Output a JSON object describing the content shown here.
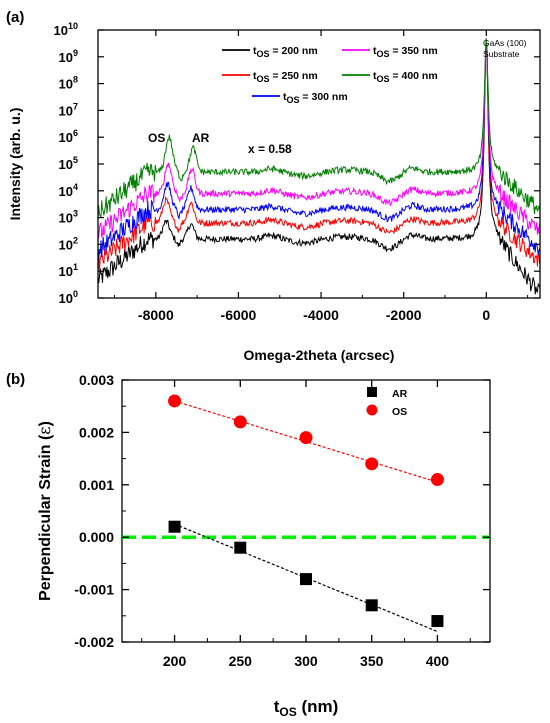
{
  "chart_data": [
    {
      "panel": "(a)",
      "type": "line",
      "xlabel": "Omega-2theta (arcsec)",
      "ylabel": "Intensity (arb. u.)",
      "xlim": [
        -9400,
        1300
      ],
      "ylim_log10": [
        0,
        10
      ],
      "yscale": "log",
      "xticks": [
        -8000,
        -6000,
        -4000,
        -2000,
        0
      ],
      "yticks": [
        "10^0",
        "10^1",
        "10^2",
        "10^3",
        "10^4",
        "10^5",
        "10^6",
        "10^7",
        "10^8",
        "10^9",
        "10^10"
      ],
      "legend_position": "top-center",
      "annotations": {
        "os": "OS",
        "ar": "AR",
        "x_value": "x = 0.58",
        "substrate_1": "GaAs (100)",
        "substrate_2": "Substrate"
      },
      "series": [
        {
          "name_prefix": "t",
          "name_sub": "OS",
          "name_value": " = 200 nm",
          "color": "#000000",
          "baseline_log10": 2.2,
          "os_peak": [
            -7750,
            2.85
          ],
          "ar_peak": [
            -7150,
            2.75
          ],
          "substrate_peak": [
            0,
            9.3
          ]
        },
        {
          "name_prefix": "t",
          "name_sub": "OS",
          "name_value": " = 250 nm",
          "color": "#ff0000",
          "baseline_log10": 2.8,
          "os_peak": [
            -7750,
            3.65
          ],
          "ar_peak": [
            -7150,
            3.55
          ],
          "substrate_peak": [
            0,
            9.3
          ]
        },
        {
          "name_prefix": "t",
          "name_sub": "OS",
          "name_value": " = 300 nm",
          "color": "#0000ff",
          "baseline_log10": 3.3,
          "os_peak": [
            -7720,
            4.25
          ],
          "ar_peak": [
            -7150,
            4.1
          ],
          "substrate_peak": [
            0,
            9.3
          ]
        },
        {
          "name_prefix": "t",
          "name_sub": "OS",
          "name_value": " = 350 nm",
          "color": "#ff00ff",
          "baseline_log10": 3.9,
          "os_peak": [
            -7700,
            5.0
          ],
          "ar_peak": [
            -7130,
            4.8
          ],
          "substrate_peak": [
            0,
            9.3
          ]
        },
        {
          "name_prefix": "t",
          "name_sub": "OS",
          "name_value": " = 400 nm",
          "color": "#008000",
          "baseline_log10": 4.7,
          "os_peak": [
            -7680,
            6.0
          ],
          "ar_peak": [
            -7100,
            5.6
          ],
          "substrate_peak": [
            0,
            9.3
          ]
        }
      ]
    },
    {
      "panel": "(b)",
      "type": "scatter",
      "xlabel_main": "t",
      "xlabel_sub": "OS",
      "xlabel_rest": " (nm)",
      "ylabel_main": "Perpendicular Strain (",
      "ylabel_symbol": "ε",
      "ylabel_end": ")",
      "xlim": [
        160,
        440
      ],
      "ylim": [
        -0.002,
        0.003
      ],
      "xticks": [
        200,
        250,
        300,
        350,
        400
      ],
      "yticks": [
        "-0.002",
        "-0.001",
        "0.000",
        "0.001",
        "0.002",
        "0.003"
      ],
      "legend_position": "top-right",
      "zero_line_color": "#00ee00",
      "series": [
        {
          "name": "AR",
          "marker": "square",
          "color": "#000000",
          "x": [
            200,
            250,
            300,
            350,
            400
          ],
          "y": [
            0.0002,
            -0.0002,
            -0.0008,
            -0.0013,
            -0.0016
          ],
          "fit": [
            [
              200,
              0.00025
            ],
            [
              400,
              -0.0018
            ]
          ]
        },
        {
          "name": "OS",
          "marker": "circle",
          "color": "#ff0000",
          "x": [
            200,
            250,
            300,
            350,
            400
          ],
          "y": [
            0.0026,
            0.0022,
            0.0019,
            0.0014,
            0.0011
          ],
          "fit": [
            [
              200,
              0.0026
            ],
            [
              400,
              0.00105
            ]
          ]
        }
      ]
    }
  ]
}
